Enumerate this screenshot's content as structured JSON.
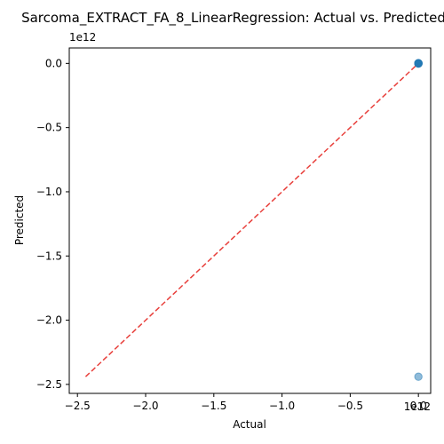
{
  "chart_data": {
    "type": "scatter",
    "title": "Sarcoma_EXTRACT_FA_8_LinearRegression: Actual vs. Predicted",
    "xlabel": "Actual",
    "ylabel": "Predicted",
    "x_offset_label": "1e12",
    "y_offset_label": "1e12",
    "xlim": [
      -2.56,
      0.09
    ],
    "ylim": [
      -2.57,
      0.12
    ],
    "x_ticks": [
      {
        "value": -2.5,
        "label": "−2.5"
      },
      {
        "value": -2.0,
        "label": "−2.0"
      },
      {
        "value": -1.5,
        "label": "−1.5"
      },
      {
        "value": -1.0,
        "label": "−1.0"
      },
      {
        "value": -0.5,
        "label": "−0.5"
      },
      {
        "value": 0.0,
        "label": "0.0"
      }
    ],
    "y_ticks": [
      {
        "value": 0.0,
        "label": "0.0"
      },
      {
        "value": -0.5,
        "label": "−0.5"
      },
      {
        "value": -1.0,
        "label": "−1.0"
      },
      {
        "value": -1.5,
        "label": "−1.5"
      },
      {
        "value": -2.0,
        "label": "−2.0"
      },
      {
        "value": -2.5,
        "label": "−2.5"
      }
    ],
    "grid": false,
    "series": [
      {
        "color": "#1f77b4",
        "opacity": 0.5,
        "points": [
          {
            "x": 0.0,
            "y": 0.0
          },
          {
            "x": 0.0,
            "y": 0.002
          },
          {
            "x": 0.0,
            "y": -0.002
          },
          {
            "x": 0.0,
            "y": 0.001
          },
          {
            "x": 0.0,
            "y": -0.001
          },
          {
            "x": 0.0,
            "y": 0.0
          },
          {
            "x": 0.0,
            "y": -2.44
          }
        ]
      }
    ],
    "reference_line": {
      "style": "dashed",
      "color": "#e8403c",
      "from": {
        "x": -2.44,
        "y": -2.44
      },
      "to": {
        "x": 0.0,
        "y": 0.0
      }
    }
  }
}
